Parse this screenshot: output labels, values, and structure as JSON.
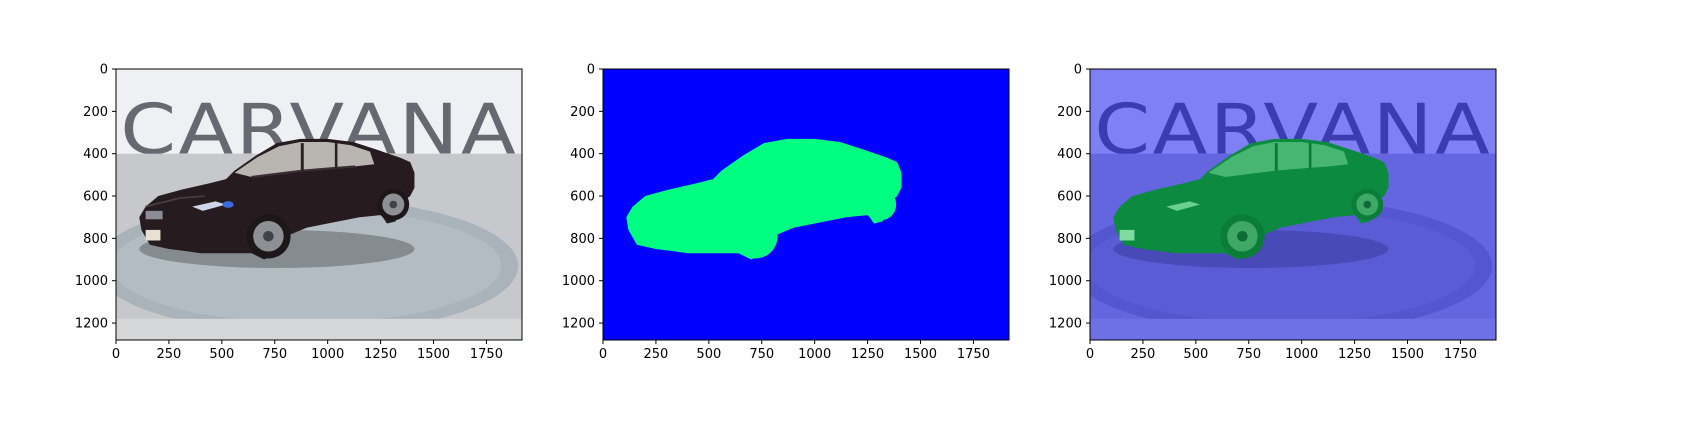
{
  "figure": {
    "panel_count": 3,
    "panels": [
      {
        "name": "original-photo",
        "content": "car photo",
        "backdrop_text": "CARVANA"
      },
      {
        "name": "segmentation-mask",
        "content": "mask",
        "background_color": "#0000ff",
        "foreground_color": "#00ff80"
      },
      {
        "name": "mask-overlay",
        "content": "photo with mask overlay",
        "backdrop_text": "CARVANA"
      }
    ],
    "axes": {
      "x_ticks": [
        "0",
        "250",
        "500",
        "750",
        "1000",
        "1250",
        "1500",
        "1750"
      ],
      "y_ticks": [
        "0",
        "200",
        "400",
        "600",
        "800",
        "1000",
        "1200"
      ],
      "x_range": [
        0,
        1918
      ],
      "y_range": [
        1280,
        0
      ]
    }
  },
  "colors": {
    "mask_background": "#0000ff",
    "mask_car": "#00ff80",
    "overlay_background": "#5050e0",
    "overlay_car": "#0a8a3e",
    "car_body": "#2a1f22",
    "studio_wall": "#e8ebef",
    "floor": "#c9cbd0"
  }
}
